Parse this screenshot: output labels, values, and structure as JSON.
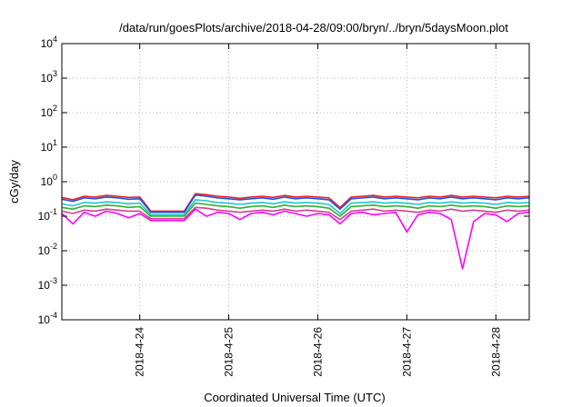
{
  "chart_data": {
    "type": "line",
    "title": "/data/run/goesPlots/archive/2018-04-28/09:00/bryn/../bryn/5daysMoon.plot",
    "xlabel": "Coordinated Universal Time (UTC)",
    "ylabel": "cGy/day",
    "yscale": "log",
    "ylim": [
      0.0001,
      10000
    ],
    "xlim": [
      "2018-04-23 03:00",
      "2018-04-28 09:00"
    ],
    "grid": true,
    "legend": "none",
    "y_ticks": [
      {
        "value": 0.0001,
        "base": "10",
        "exp": "-4"
      },
      {
        "value": 0.001,
        "base": "10",
        "exp": "-3"
      },
      {
        "value": 0.01,
        "base": "10",
        "exp": "-2"
      },
      {
        "value": 0.1,
        "base": "10",
        "exp": "-1"
      },
      {
        "value": 1,
        "base": "10",
        "exp": "0"
      },
      {
        "value": 10,
        "base": "10",
        "exp": "1"
      },
      {
        "value": 100,
        "base": "10",
        "exp": "2"
      },
      {
        "value": 1000,
        "base": "10",
        "exp": "3"
      },
      {
        "value": 10000,
        "base": "10",
        "exp": "4"
      }
    ],
    "x_ticks": [
      {
        "value": "2018-04-24",
        "label": "2018-4-24"
      },
      {
        "value": "2018-04-25",
        "label": "2018-4-25"
      },
      {
        "value": "2018-04-26",
        "label": "2018-4-26"
      },
      {
        "value": "2018-04-27",
        "label": "2018-4-27"
      },
      {
        "value": "2018-04-28",
        "label": "2018-4-28"
      }
    ],
    "x": [
      "2018-04-23 03:00",
      "2018-04-23 06:00",
      "2018-04-23 09:00",
      "2018-04-23 12:00",
      "2018-04-23 15:00",
      "2018-04-23 18:00",
      "2018-04-23 21:00",
      "2018-04-24 00:00",
      "2018-04-24 03:00",
      "2018-04-24 06:00",
      "2018-04-24 09:00",
      "2018-04-24 12:00",
      "2018-04-24 15:00",
      "2018-04-24 18:00",
      "2018-04-24 21:00",
      "2018-04-25 00:00",
      "2018-04-25 03:00",
      "2018-04-25 06:00",
      "2018-04-25 09:00",
      "2018-04-25 12:00",
      "2018-04-25 15:00",
      "2018-04-25 18:00",
      "2018-04-25 21:00",
      "2018-04-26 00:00",
      "2018-04-26 03:00",
      "2018-04-26 06:00",
      "2018-04-26 09:00",
      "2018-04-26 12:00",
      "2018-04-26 15:00",
      "2018-04-26 18:00",
      "2018-04-26 21:00",
      "2018-04-27 00:00",
      "2018-04-27 03:00",
      "2018-04-27 06:00",
      "2018-04-27 09:00",
      "2018-04-27 12:00",
      "2018-04-27 15:00",
      "2018-04-27 18:00",
      "2018-04-27 21:00",
      "2018-04-28 00:00",
      "2018-04-28 03:00",
      "2018-04-28 06:00",
      "2018-04-28 09:00"
    ],
    "series": [
      {
        "color": "#e8202a",
        "values": [
          0.35,
          0.3,
          0.38,
          0.36,
          0.4,
          0.38,
          0.35,
          0.36,
          0.14,
          0.14,
          0.14,
          0.14,
          0.45,
          0.42,
          0.38,
          0.36,
          0.33,
          0.36,
          0.38,
          0.35,
          0.4,
          0.36,
          0.38,
          0.36,
          0.34,
          0.18,
          0.36,
          0.38,
          0.4,
          0.36,
          0.38,
          0.36,
          0.34,
          0.38,
          0.36,
          0.4,
          0.36,
          0.38,
          0.36,
          0.34,
          0.38,
          0.36,
          0.38
        ]
      },
      {
        "color": "#2050e0",
        "values": [
          0.31,
          0.27,
          0.34,
          0.32,
          0.36,
          0.34,
          0.31,
          0.32,
          0.13,
          0.13,
          0.13,
          0.13,
          0.41,
          0.38,
          0.34,
          0.32,
          0.3,
          0.32,
          0.34,
          0.31,
          0.36,
          0.32,
          0.34,
          0.32,
          0.3,
          0.16,
          0.32,
          0.34,
          0.36,
          0.32,
          0.34,
          0.32,
          0.3,
          0.34,
          0.32,
          0.36,
          0.32,
          0.34,
          0.32,
          0.3,
          0.34,
          0.32,
          0.34
        ]
      },
      {
        "color": "#20c8c8",
        "values": [
          0.23,
          0.2,
          0.25,
          0.24,
          0.26,
          0.25,
          0.23,
          0.24,
          0.11,
          0.11,
          0.11,
          0.11,
          0.3,
          0.28,
          0.25,
          0.24,
          0.22,
          0.24,
          0.25,
          0.23,
          0.26,
          0.24,
          0.25,
          0.24,
          0.22,
          0.12,
          0.24,
          0.25,
          0.26,
          0.24,
          0.25,
          0.24,
          0.22,
          0.25,
          0.24,
          0.26,
          0.24,
          0.25,
          0.24,
          0.22,
          0.25,
          0.24,
          0.25
        ]
      },
      {
        "color": "#30b030",
        "values": [
          0.18,
          0.16,
          0.2,
          0.19,
          0.21,
          0.2,
          0.18,
          0.19,
          0.1,
          0.1,
          0.1,
          0.1,
          0.24,
          0.22,
          0.2,
          0.19,
          0.17,
          0.19,
          0.2,
          0.18,
          0.21,
          0.19,
          0.2,
          0.19,
          0.17,
          0.1,
          0.19,
          0.2,
          0.21,
          0.19,
          0.2,
          0.19,
          0.17,
          0.2,
          0.19,
          0.21,
          0.19,
          0.2,
          0.19,
          0.17,
          0.2,
          0.19,
          0.2
        ]
      },
      {
        "color": "#d04090",
        "values": [
          0.14,
          0.12,
          0.15,
          0.14,
          0.16,
          0.15,
          0.14,
          0.14,
          0.085,
          0.085,
          0.085,
          0.085,
          0.18,
          0.17,
          0.15,
          0.14,
          0.13,
          0.14,
          0.15,
          0.14,
          0.16,
          0.14,
          0.15,
          0.14,
          0.13,
          0.08,
          0.14,
          0.15,
          0.16,
          0.14,
          0.15,
          0.14,
          0.13,
          0.15,
          0.14,
          0.16,
          0.14,
          0.15,
          0.14,
          0.13,
          0.15,
          0.14,
          0.15
        ]
      },
      {
        "color": "#ff00ff",
        "values": [
          0.12,
          0.06,
          0.13,
          0.1,
          0.14,
          0.12,
          0.09,
          0.12,
          0.075,
          0.075,
          0.075,
          0.075,
          0.16,
          0.1,
          0.13,
          0.12,
          0.08,
          0.12,
          0.13,
          0.11,
          0.14,
          0.12,
          0.1,
          0.12,
          0.11,
          0.06,
          0.12,
          0.13,
          0.11,
          0.12,
          0.13,
          0.035,
          0.11,
          0.13,
          0.12,
          0.08,
          0.003,
          0.07,
          0.12,
          0.11,
          0.07,
          0.12,
          0.13
        ]
      }
    ]
  }
}
